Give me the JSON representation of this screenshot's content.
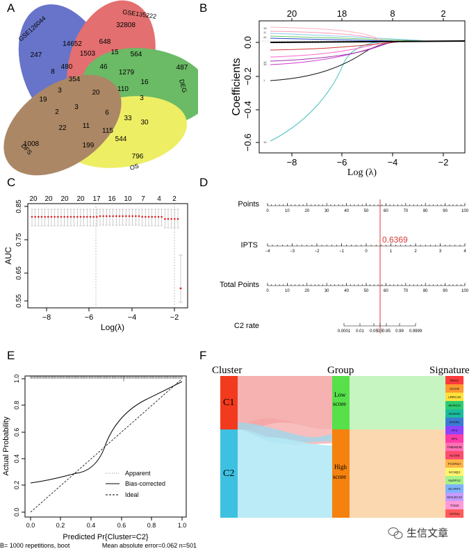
{
  "panels": {
    "a": "A",
    "b": "B",
    "c": "C",
    "d": "D",
    "e": "E",
    "f": "F"
  },
  "venn": {
    "sets": [
      "GSE126044",
      "GSE135222",
      "DEG",
      "OS",
      "DFS"
    ],
    "colors": [
      "#2f3fb5",
      "#d9383a",
      "#33a02c",
      "#e8e82a",
      "#8b5a2b"
    ],
    "counts": [
      "247",
      "32808",
      "487",
      "796",
      "1008",
      "14652",
      "648",
      "1503",
      "15",
      "564",
      "480",
      "46",
      "1279",
      "8",
      "354",
      "16",
      "3",
      "20",
      "110",
      "19",
      "3",
      "3",
      "2",
      "6",
      "33",
      "22",
      "11",
      "115",
      "30",
      "199",
      "544"
    ]
  },
  "lasso_coef": {
    "top_labels": [
      "20",
      "18",
      "8",
      "2"
    ],
    "x_ticks": [
      "−8",
      "−6",
      "−4",
      "−2"
    ],
    "y_ticks": [
      "0.0",
      "−0.2",
      "−0.4",
      "−0.6"
    ],
    "xlabel": "Log (λ)",
    "ylabel": "Coefficients"
  },
  "auc_plot": {
    "top_labels": [
      "20",
      "20",
      "20",
      "20",
      "17",
      "16",
      "10",
      "7",
      "4",
      "2"
    ],
    "x_ticks": [
      "−8",
      "−6",
      "−4",
      "−2"
    ],
    "y_ticks": [
      "0.85",
      "0.75",
      "0.65",
      "0.55"
    ],
    "xlabel": "Log(λ)",
    "ylabel": "AUC"
  },
  "nomogram": {
    "rows": [
      "Points",
      "IPTS",
      "Total Points",
      "C2 rate"
    ],
    "points_ticks": [
      "0",
      "10",
      "20",
      "30",
      "40",
      "50",
      "60",
      "70",
      "80",
      "90",
      "100"
    ],
    "ipts_ticks": [
      "−4",
      "−3",
      "−2",
      "−1",
      "0",
      "1",
      "2",
      "3",
      "4"
    ],
    "total_ticks": [
      "0",
      "10",
      "20",
      "30",
      "40",
      "50",
      "60",
      "70",
      "80",
      "90",
      "100"
    ],
    "rate_ticks": [
      "0.0001",
      "0.01",
      "0.05",
      "0.5",
      "0.95",
      "0.99",
      "0.9999"
    ],
    "value": "0.6369"
  },
  "calibration": {
    "x_ticks": [
      "0.0",
      "0.2",
      "0.4",
      "0.6",
      "0.8",
      "1.0"
    ],
    "y_ticks": [
      "0.0",
      "0.2",
      "0.4",
      "0.6",
      "0.8",
      "1.0"
    ],
    "xlabel": "Predicted Pr{Cluster=C2}",
    "ylabel": "Actual Probability",
    "legend": [
      "Apparent",
      "Bias-corrected",
      "Ideal"
    ],
    "footer_left": "B= 1000 repetitions, boot",
    "footer_right": "Mean absolute error=0.062 n=501"
  },
  "sankey": {
    "headers": [
      "Cluster",
      "Group",
      "Signature"
    ],
    "clusters": [
      "C1",
      "C2"
    ],
    "groups": [
      [
        "Low",
        "score"
      ],
      [
        "High",
        "score"
      ]
    ],
    "signatures": [
      "DKK2",
      "GCGR",
      "LRRC19",
      "MARCO",
      "NANOG",
      "NTSR1",
      "PF4",
      "RP1",
      "TMEM236",
      "ALOX5",
      "FCGR2A",
      "KCNQ3",
      "NLRP12",
      "SCARF1",
      "SIGLEC12",
      "TGM2",
      "VSTM1"
    ],
    "colors": {
      "c1": "#f23a1e",
      "c2": "#3ec1e0",
      "low": "#57e04a",
      "high": "#f5820f"
    }
  },
  "watermark": "生信文章"
}
